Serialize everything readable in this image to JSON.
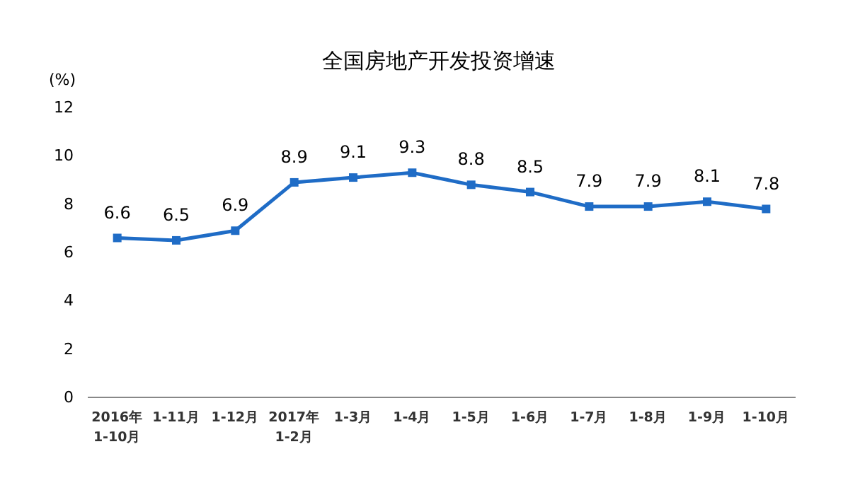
{
  "chart_data": {
    "type": "line",
    "title": "全国房地产开发投资增速",
    "ylabel": "(%)",
    "categories": [
      "2016年\n1-10月",
      "1-11月",
      "1-12月",
      "2017年\n1-2月",
      "1-3月",
      "1-4月",
      "1-5月",
      "1-6月",
      "1-7月",
      "1-8月",
      "1-9月",
      "1-10月"
    ],
    "series": [
      {
        "color": "#1f6cc6",
        "values": [
          6.6,
          6.5,
          6.9,
          8.9,
          9.1,
          9.3,
          8.8,
          8.5,
          7.9,
          7.9,
          8.1,
          7.8
        ]
      }
    ],
    "ylim": [
      0,
      12
    ],
    "yticks": [
      0,
      2,
      4,
      6,
      8,
      10,
      12
    ],
    "grid": false,
    "marker": "square",
    "line_style": "solid",
    "data_labels": true
  }
}
